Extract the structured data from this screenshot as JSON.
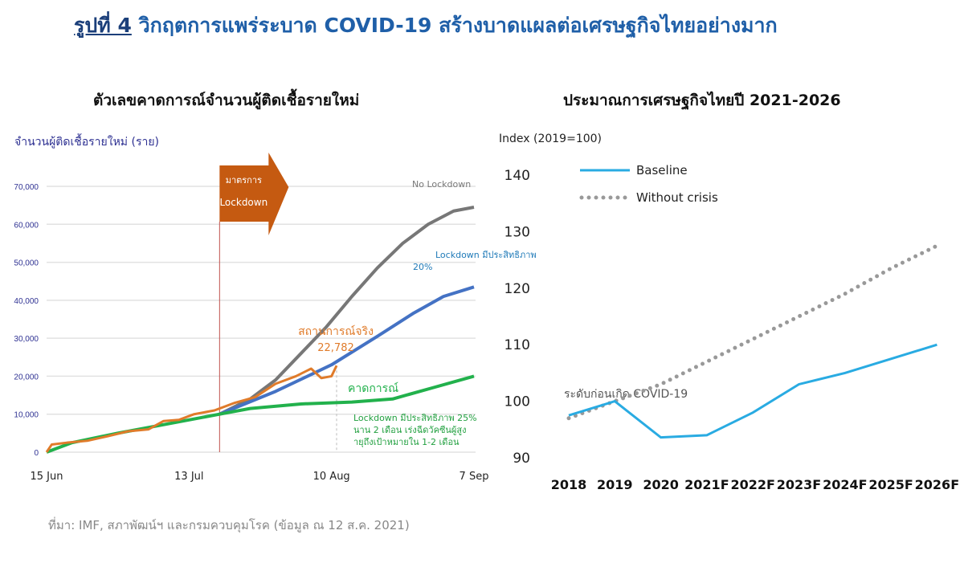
{
  "title": {
    "lead": "รูปที่ 4",
    "text": "วิกฤตการแพร่ระบาด COVID-19 สร้างบาดแผลต่อเศรษฐกิจไทยอย่างมาก"
  },
  "source": "ที่มา: IMF, สภาพัฒน์ฯ และกรมควบคุมโรค (ข้อมูล ณ 12 ส.ค. 2021)",
  "colors": {
    "title": "#1f5fa8",
    "no_lockdown": "#777777",
    "lockdown20": "#4472c4",
    "forecast": "#22b14c",
    "actual": "#e07b2a",
    "arrow": "#c55a11",
    "baseline": "#29abe2",
    "without_crisis": "#999999"
  },
  "chart_data": [
    {
      "type": "line",
      "title": "ตัวเลขคาดการณ์จำนวนผู้ติดเชื้อรายใหม่",
      "ylabel": "จำนวนผู้ติดเชื้อรายใหม่ (ราย)",
      "ylim": [
        0,
        70000
      ],
      "yticks": [
        "0",
        "10,000",
        "20,000",
        "30,000",
        "40,000",
        "50,000",
        "60,000",
        "70,000"
      ],
      "xlim": [
        "15 Jun",
        "7 Sep"
      ],
      "xticks": [
        "15 Jun",
        "13 Jul",
        "10 Aug",
        "7 Sep"
      ],
      "grid": true,
      "lockdown_marker": {
        "date": "19 Jul",
        "label1": "มาตรการ",
        "label2": "Lockdown"
      },
      "series": [
        {
          "name": "No Lockdown",
          "color": "#777777",
          "points": [
            [
              "19 Jul",
              10000
            ],
            [
              "25 Jul",
              14000
            ],
            [
              "30 Jul",
              19000
            ],
            [
              "4 Aug",
              26000
            ],
            [
              "9 Aug",
              33000
            ],
            [
              "14 Aug",
              41000
            ],
            [
              "19 Aug",
              48500
            ],
            [
              "24 Aug",
              55000
            ],
            [
              "29 Aug",
              60000
            ],
            [
              "3 Sep",
              63500
            ],
            [
              "7 Sep",
              64500
            ]
          ]
        },
        {
          "name": "Lockdown มีประสิทธิภาพ 20%",
          "color": "#4472c4",
          "points": [
            [
              "19 Jul",
              10000
            ],
            [
              "30 Jul",
              16000
            ],
            [
              "10 Aug",
              23000
            ],
            [
              "19 Aug",
              30500
            ],
            [
              "26 Aug",
              36500
            ],
            [
              "1 Sep",
              41000
            ],
            [
              "7 Sep",
              43500
            ]
          ]
        },
        {
          "name": "คาดการณ์",
          "note": "Lockdown มีประสิทธิภาพ 25% นาน 2 เดือน เร่งฉีดวัคซีนผู้สูงอายุถึงเป้าหมายใน 1-2 เดือน",
          "color": "#22b14c",
          "points": [
            [
              "15 Jun",
              0
            ],
            [
              "20 Jun",
              2500
            ],
            [
              "29 Jun",
              5000
            ],
            [
              "9 Jul",
              7500
            ],
            [
              "19 Jul",
              10000
            ],
            [
              "25 Jul",
              11500
            ],
            [
              "4 Aug",
              12700
            ],
            [
              "14 Aug",
              13200
            ],
            [
              "22 Aug",
              14000
            ],
            [
              "30 Aug",
              17000
            ],
            [
              "7 Sep",
              20000
            ]
          ]
        },
        {
          "name": "สถานการณ์จริง",
          "label_value": "22,782",
          "color": "#e07b2a",
          "points": [
            [
              "15 Jun",
              0
            ],
            [
              "16 Jun",
              2000
            ],
            [
              "19 Jun",
              2500
            ],
            [
              "23 Jun",
              3000
            ],
            [
              "27 Jun",
              4200
            ],
            [
              "1 Jul",
              5500
            ],
            [
              "5 Jul",
              6000
            ],
            [
              "8 Jul",
              8200
            ],
            [
              "11 Jul",
              8500
            ],
            [
              "14 Jul",
              10000
            ],
            [
              "18 Jul",
              11000
            ],
            [
              "22 Jul",
              13000
            ],
            [
              "26 Jul",
              14500
            ],
            [
              "30 Jul",
              18000
            ],
            [
              "3 Aug",
              20000
            ],
            [
              "6 Aug",
              22000
            ],
            [
              "8 Aug",
              19500
            ],
            [
              "10 Aug",
              20000
            ],
            [
              "11 Aug",
              22782
            ]
          ]
        }
      ]
    },
    {
      "type": "line",
      "title": "ประมาณการเศรษฐกิจไทยปี 2021-2026",
      "ylabel": "Index (2019=100)",
      "ylim": [
        90,
        140
      ],
      "yticks": [
        "90",
        "100",
        "110",
        "120",
        "130",
        "140"
      ],
      "categories": [
        "2018",
        "2019",
        "2020",
        "2021F",
        "2022F",
        "2023F",
        "2024F",
        "2025F",
        "2026F"
      ],
      "grid": false,
      "legend": "top-left",
      "reference_line": {
        "value": 100,
        "label": "ระดับก่อนเกิด COVID-19"
      },
      "series": [
        {
          "name": "Baseline",
          "color": "#29abe2",
          "style": "solid",
          "values": [
            97.5,
            100,
            93.6,
            94,
            98,
            103,
            105,
            107.5,
            110
          ]
        },
        {
          "name": "Without crisis",
          "color": "#999999",
          "style": "dotted",
          "values": [
            97,
            100,
            103,
            107,
            111,
            115,
            119,
            123.5,
            127.5
          ]
        }
      ]
    }
  ]
}
